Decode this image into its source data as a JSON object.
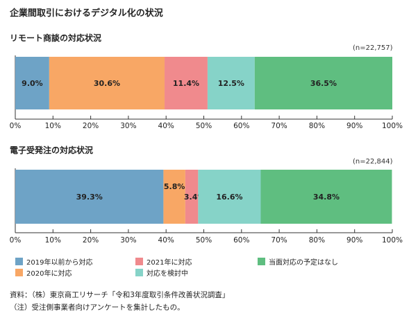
{
  "title": "企業間取引におけるデジタル化の状況",
  "colors": [
    "#6ea3c6",
    "#f8a765",
    "#f08a8d",
    "#86d3c8",
    "#5fbe80"
  ],
  "legend": [
    "2019年以前から対応",
    "2020年に対応",
    "2021年に対応",
    "対応を検討中",
    "当面対応の予定はなし"
  ],
  "chart_data": [
    {
      "type": "bar",
      "orientation": "horizontal-stacked",
      "title": "リモート商談の対応状況",
      "n_label": "(n=22,757)",
      "categories": [
        "リモート商談の対応状況"
      ],
      "xlim": [
        0,
        100
      ],
      "x_ticks": [
        "0%",
        "10%",
        "20%",
        "30%",
        "40%",
        "50%",
        "60%",
        "70%",
        "80%",
        "90%",
        "100%"
      ],
      "series": [
        {
          "name": "2019年以前から対応",
          "values": [
            9.0
          ],
          "label": "9.0%"
        },
        {
          "name": "2020年に対応",
          "values": [
            30.6
          ],
          "label": "30.6%"
        },
        {
          "name": "2021年に対応",
          "values": [
            11.4
          ],
          "label": "11.4%"
        },
        {
          "name": "対応を検討中",
          "values": [
            12.5
          ],
          "label": "12.5%"
        },
        {
          "name": "当面対応の予定はなし",
          "values": [
            36.5
          ],
          "label": "36.5%"
        }
      ]
    },
    {
      "type": "bar",
      "orientation": "horizontal-stacked",
      "title": "電子受発注の対応状況",
      "n_label": "(n=22,844)",
      "categories": [
        "電子受発注の対応状況"
      ],
      "xlim": [
        0,
        100
      ],
      "x_ticks": [
        "0%",
        "10%",
        "20%",
        "30%",
        "40%",
        "50%",
        "60%",
        "70%",
        "80%",
        "90%",
        "100%"
      ],
      "series": [
        {
          "name": "2019年以前から対応",
          "values": [
            39.3
          ],
          "label": "39.3%"
        },
        {
          "name": "2020年に対応",
          "values": [
            5.8
          ],
          "label": "5.8%"
        },
        {
          "name": "2021年に対応",
          "values": [
            3.4
          ],
          "label": "3.4%"
        },
        {
          "name": "対応を検討中",
          "values": [
            16.6
          ],
          "label": "16.6%"
        },
        {
          "name": "当面対応の予定はなし",
          "values": [
            34.8
          ],
          "label": "34.8%"
        }
      ]
    }
  ],
  "notes": [
    "資料：（株）東京商工リサーチ「令和3年度取引条件改善状況調査」",
    "（注）受注側事業者向けアンケートを集計したもの。"
  ]
}
